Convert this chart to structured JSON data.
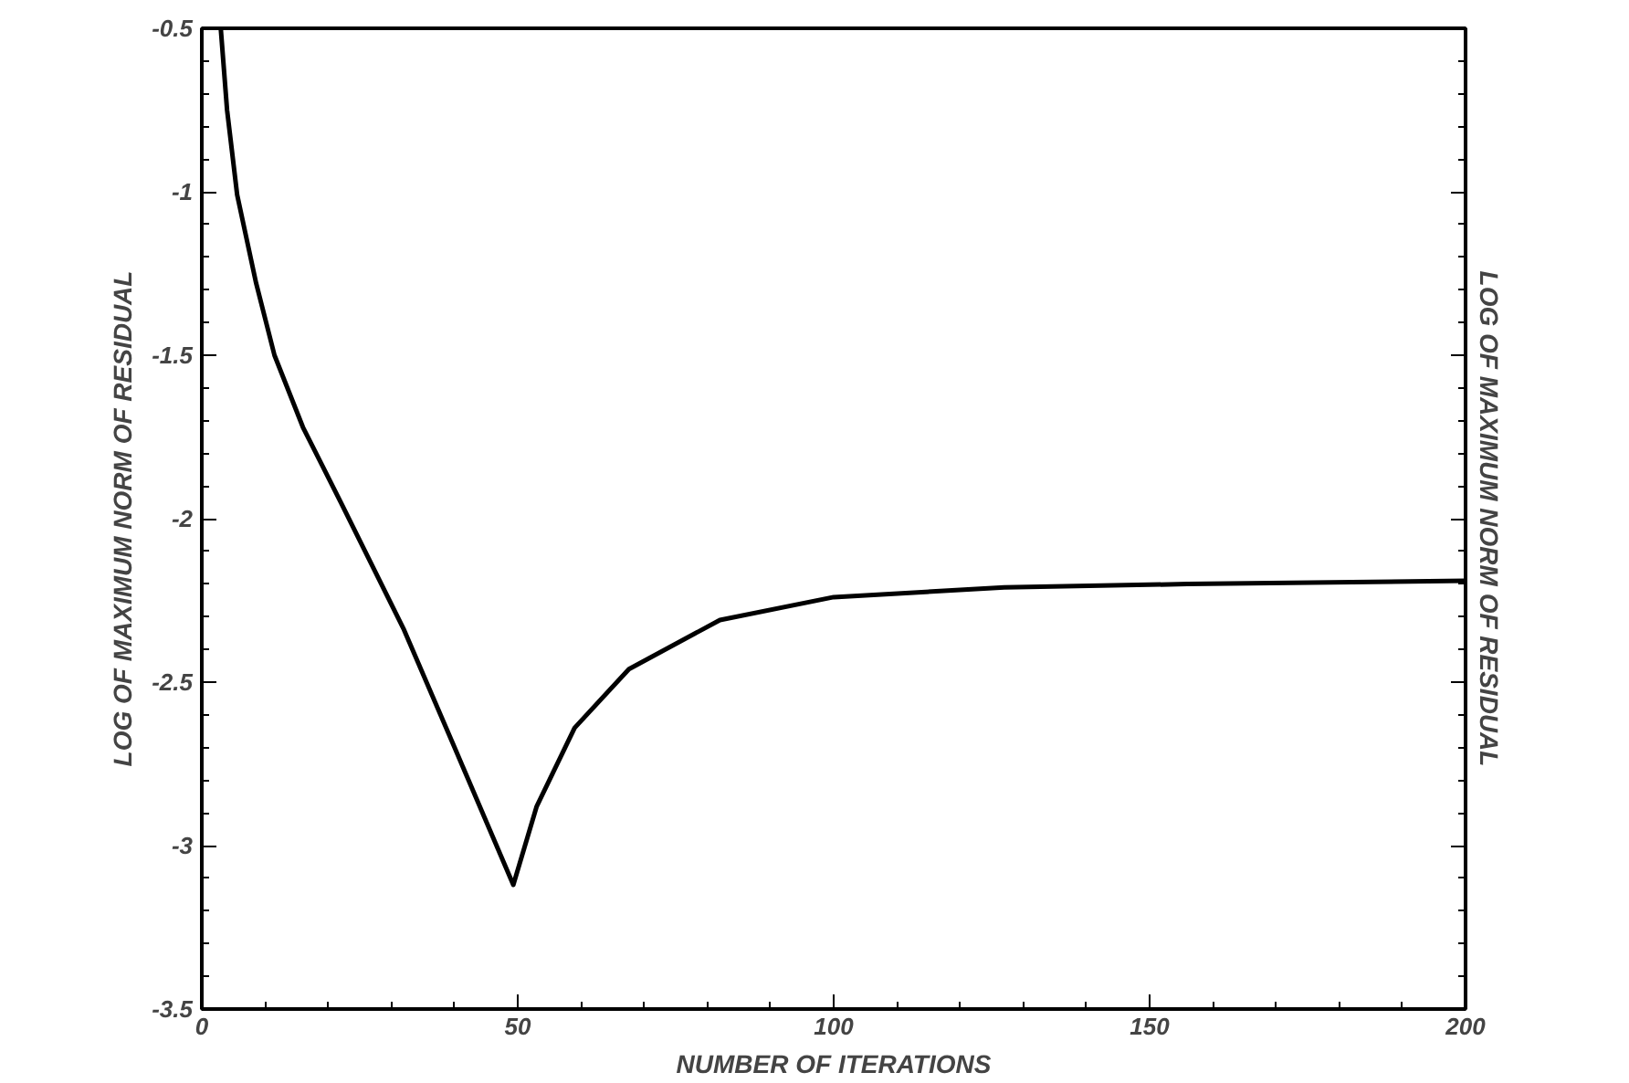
{
  "chart_data": {
    "type": "line",
    "xlabel": "NUMBER OF ITERATIONS",
    "ylabel": "LOG OF MAXIMUM NORM OF RESIDUAL",
    "y2label": "LOG OF MAXIMUM NORM OF RESIDUAL",
    "xlim": [
      0,
      200
    ],
    "ylim": [
      -3.5,
      -0.5
    ],
    "xticks": [
      0,
      50,
      100,
      150,
      200
    ],
    "yticks": [
      -3.5,
      -3,
      -2.5,
      -2,
      -1.5,
      -1,
      -0.5
    ],
    "grid": false,
    "line_style": "solid",
    "marker": "none",
    "series": [
      {
        "color": "#000000",
        "x": [
          3,
          4,
          5.6,
          8.6,
          11.5,
          16,
          22,
          32,
          40,
          49.3,
          53,
          59,
          67.6,
          82,
          100,
          127,
          156,
          200
        ],
        "values": [
          -0.5,
          -0.75,
          -1.01,
          -1.28,
          -1.5,
          -1.72,
          -1.95,
          -2.34,
          -2.7,
          -3.12,
          -2.88,
          -2.64,
          -2.46,
          -2.31,
          -2.24,
          -2.21,
          -2.2,
          -2.19
        ]
      }
    ]
  }
}
